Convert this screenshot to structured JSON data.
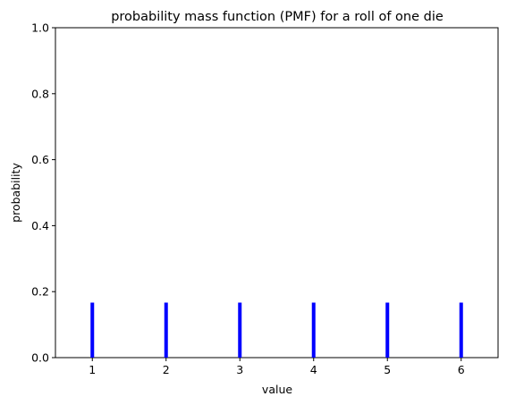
{
  "chart_data": {
    "type": "bar",
    "title": "probability mass function (PMF) for a roll of one die",
    "xlabel": "value",
    "ylabel": "probability",
    "categories": [
      1,
      2,
      3,
      4,
      5,
      6
    ],
    "values": [
      0.1667,
      0.1667,
      0.1667,
      0.1667,
      0.1667,
      0.1667
    ],
    "xlim": [
      0.5,
      6.5
    ],
    "ylim": [
      0,
      1.0
    ],
    "xticks": [
      "1",
      "2",
      "3",
      "4",
      "5",
      "6"
    ],
    "yticks": [
      "0.0",
      "0.2",
      "0.4",
      "0.6",
      "0.8",
      "1.0"
    ],
    "bar_color": "#0000ff",
    "grid": false,
    "legend": "none"
  }
}
